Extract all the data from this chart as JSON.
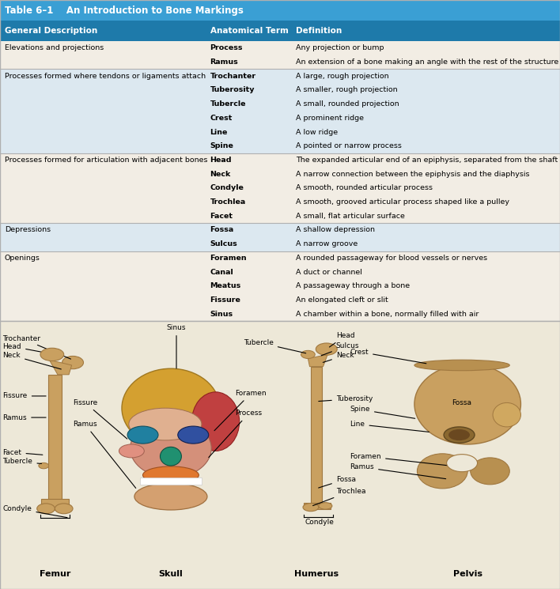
{
  "title_bg": "#3a9fd4",
  "header_bg": "#1e7aaa",
  "alt_row_bg": "#dce8f0",
  "white_row_bg": "#f2ede4",
  "border_color": "#b0b0b0",
  "title_text": "Table 6–1    An Introduction to Bone Markings",
  "col_headers": [
    "General Description",
    "Anatomical Term",
    "Definition"
  ],
  "rows": [
    [
      "Elevations and projections",
      "Process",
      "Any projection or bump",
      0
    ],
    [
      "",
      "Ramus",
      "An extension of a bone making an angle with the rest of the structure",
      0
    ],
    [
      "Processes formed where tendons or ligaments attach",
      "Trochanter",
      "A large, rough projection",
      1
    ],
    [
      "",
      "Tuberosity",
      "A smaller, rough projection",
      1
    ],
    [
      "",
      "Tubercle",
      "A small, rounded projection",
      1
    ],
    [
      "",
      "Crest",
      "A prominent ridge",
      1
    ],
    [
      "",
      "Line",
      "A low ridge",
      1
    ],
    [
      "",
      "Spine",
      "A pointed or narrow process",
      1
    ],
    [
      "Processes formed for articulation with adjacent bones",
      "Head",
      "The expanded articular end of an epiphysis, separated from the shaft by a neck",
      0
    ],
    [
      "",
      "Neck",
      "A narrow connection between the epiphysis and the diaphysis",
      0
    ],
    [
      "",
      "Condyle",
      "A smooth, rounded articular process",
      0
    ],
    [
      "",
      "Trochlea",
      "A smooth, grooved articular process shaped like a pulley",
      0
    ],
    [
      "",
      "Facet",
      "A small, flat articular surface",
      0
    ],
    [
      "Depressions",
      "Fossa",
      "A shallow depression",
      1
    ],
    [
      "",
      "Sulcus",
      "A narrow groove",
      1
    ],
    [
      "Openings",
      "Foramen",
      "A rounded passageway for blood vessels or nerves",
      0
    ],
    [
      "",
      "Canal",
      "A duct or channel",
      0
    ],
    [
      "",
      "Meatus",
      "A passageway through a bone",
      0
    ],
    [
      "",
      "Fissure",
      "An elongated cleft or slit",
      0
    ],
    [
      "",
      "Sinus",
      "A chamber within a bone, normally filled with air",
      0
    ]
  ],
  "illustration_bg": "#ede8d8",
  "group_colors": [
    0,
    0,
    1,
    1,
    1,
    1,
    1,
    1,
    0,
    0,
    0,
    0,
    0,
    1,
    1,
    0,
    0,
    0,
    0,
    0
  ],
  "bone_names": [
    "Femur",
    "Skull",
    "Humerus",
    "Pelvis"
  ],
  "bone_color": "#c9a060",
  "bone_edge": "#a07840"
}
